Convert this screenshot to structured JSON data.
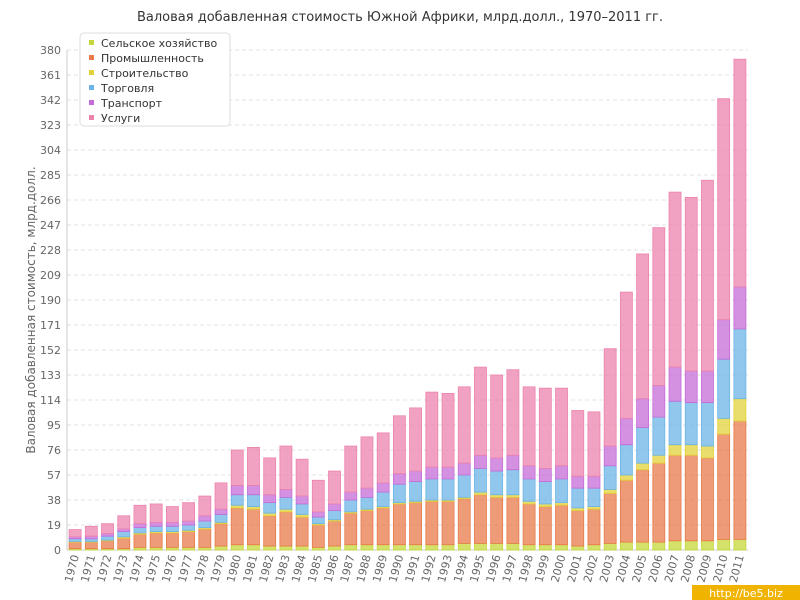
{
  "chart_data": {
    "type": "bar",
    "stacked": true,
    "title": "Валовая добавленная стоимость Южной Африки, млрд.долл., 1970–2011 гг.",
    "ylabel": "Валовая добавленная стоимость, млрд.долл.",
    "xlabel": "",
    "ylim": [
      0,
      380
    ],
    "yticks": [
      0,
      19,
      38,
      57,
      76,
      95,
      114,
      133,
      152,
      171,
      190,
      209,
      228,
      247,
      266,
      285,
      304,
      323,
      342,
      361,
      380
    ],
    "legend_position": "top-left",
    "categories": [
      "1970",
      "1971",
      "1972",
      "1973",
      "1974",
      "1975",
      "1976",
      "1977",
      "1978",
      "1979",
      "1980",
      "1981",
      "1982",
      "1983",
      "1984",
      "1985",
      "1986",
      "1987",
      "1988",
      "1989",
      "1990",
      "1991",
      "1992",
      "1993",
      "1994",
      "1995",
      "1996",
      "1997",
      "1998",
      "1999",
      "2000",
      "2001",
      "2002",
      "2003",
      "2004",
      "2005",
      "2006",
      "2007",
      "2008",
      "2009",
      "2010",
      "2011"
    ],
    "series": [
      {
        "name": "Сельское хозяйство",
        "color": "#c5d73a",
        "values": [
          1,
          1,
          1,
          1,
          2,
          2,
          2,
          2,
          2,
          3,
          4,
          4,
          3,
          3,
          3,
          2,
          3,
          4,
          4,
          4,
          4,
          4,
          4,
          4,
          5,
          5,
          5,
          5,
          4,
          4,
          4,
          3,
          4,
          5,
          6,
          6,
          6,
          7,
          7,
          7,
          8,
          8
        ]
      },
      {
        "name": "Промышленность",
        "color": "#e8794b",
        "values": [
          5,
          5,
          6,
          8,
          10,
          11,
          11,
          12,
          14,
          17,
          28,
          27,
          23,
          26,
          22,
          17,
          19,
          24,
          26,
          28,
          31,
          32,
          33,
          33,
          34,
          37,
          35,
          35,
          31,
          29,
          30,
          27,
          27,
          38,
          47,
          55,
          60,
          65,
          65,
          63,
          80,
          90
        ]
      },
      {
        "name": "Строительство",
        "color": "#e2d23a",
        "values": [
          0.5,
          0.5,
          0.5,
          1,
          1,
          1,
          1,
          1,
          1,
          1,
          2,
          2,
          2,
          2,
          2,
          1,
          1,
          1,
          1,
          1,
          1,
          1,
          1,
          1,
          1,
          2,
          2,
          2,
          2,
          2,
          2,
          2,
          2,
          3,
          4,
          5,
          6,
          8,
          8,
          9,
          12,
          17
        ]
      },
      {
        "name": "Торговля",
        "color": "#6cb4e6",
        "values": [
          2,
          2,
          3,
          4,
          4,
          4,
          4,
          4,
          5,
          6,
          8,
          9,
          8,
          9,
          8,
          5,
          7,
          9,
          9,
          11,
          14,
          15,
          16,
          16,
          17,
          18,
          18,
          19,
          17,
          17,
          18,
          15,
          14,
          18,
          23,
          27,
          29,
          33,
          32,
          33,
          45,
          53
        ]
      },
      {
        "name": "Транспорт",
        "color": "#c66cd8",
        "values": [
          1.5,
          2,
          2,
          2,
          3,
          3,
          3,
          3,
          4,
          4,
          7,
          7,
          6,
          6,
          6,
          4,
          5,
          6,
          7,
          7,
          8,
          8,
          9,
          9,
          9,
          10,
          10,
          11,
          10,
          10,
          10,
          9,
          9,
          15,
          20,
          22,
          24,
          26,
          24,
          24,
          30,
          32
        ]
      },
      {
        "name": "Услуги",
        "color": "#ec83ad",
        "values": [
          5.5,
          7.5,
          7.5,
          10,
          14,
          14,
          12,
          14,
          15,
          20,
          27,
          29,
          28,
          33,
          28,
          24,
          25,
          35,
          39,
          38,
          44,
          48,
          57,
          56,
          58,
          67,
          63,
          65,
          60,
          61,
          59,
          50,
          49,
          74,
          96,
          110,
          120,
          133,
          132,
          145,
          168,
          173
        ]
      }
    ]
  },
  "watermark": "http://be5.biz"
}
